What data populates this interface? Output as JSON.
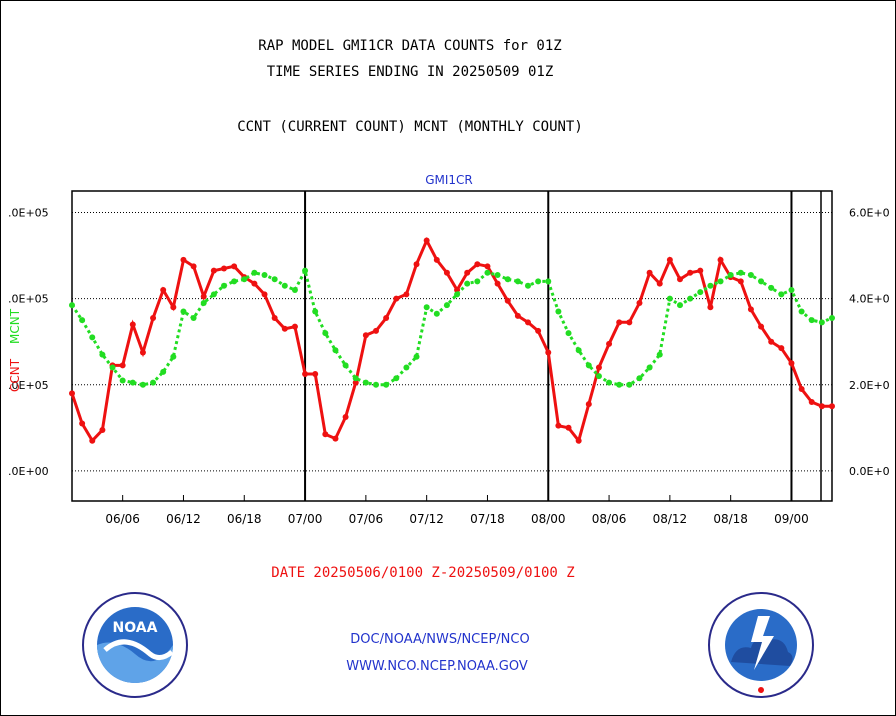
{
  "header": {
    "line1": "RAP MODEL GMI1CR DATA COUNTS for 01Z",
    "line2": "TIME SERIES ENDING IN 20250509 01Z",
    "line3": "CCNT (CURRENT COUNT) MCNT (MONTHLY COUNT)"
  },
  "footer": {
    "date_range": "DATE 20250506/0100 Z-20250509/0100 Z",
    "org": "DOC/NOAA/NWS/NCEP/NCO",
    "url": "WWW.NCO.NCEP.NOAA.GOV"
  },
  "logos": {
    "left": "NOAA",
    "right": "NATIONAL WEATHER SERVICE"
  },
  "colors": {
    "ccnt": "#ee1111",
    "mcnt": "#22dd22",
    "title_blue": "#2233cc",
    "grid": "#000000"
  },
  "chart_data": {
    "type": "line",
    "title": "GMI1CR",
    "ylabel_left_ccnt": "CCNT",
    "ylabel_left_mcnt": "MCNT",
    "xlim": [
      0,
      75
    ],
    "ylim": [
      -70000,
      650000
    ],
    "y_ticks_left": [
      {
        "value": 0,
        "label": ".0E+00"
      },
      {
        "value": 200000,
        "label": ".0E+05"
      },
      {
        "value": 400000,
        "label": ".0E+05"
      },
      {
        "value": 600000,
        "label": ".0E+05"
      }
    ],
    "y_ticks_right": [
      {
        "value": 0,
        "label": "0.0E+0"
      },
      {
        "value": 200000,
        "label": "2.0E+0"
      },
      {
        "value": 400000,
        "label": "4.0E+0"
      },
      {
        "value": 600000,
        "label": "6.0E+0"
      }
    ],
    "x_ticks": [
      {
        "x": 5,
        "label": "06/06"
      },
      {
        "x": 11,
        "label": "06/12"
      },
      {
        "x": 17,
        "label": "06/18"
      },
      {
        "x": 23,
        "label": "07/00"
      },
      {
        "x": 29,
        "label": "07/06"
      },
      {
        "x": 35,
        "label": "07/12"
      },
      {
        "x": 41,
        "label": "07/18"
      },
      {
        "x": 47,
        "label": "08/00"
      },
      {
        "x": 53,
        "label": "08/06"
      },
      {
        "x": 59,
        "label": "08/12"
      },
      {
        "x": 65,
        "label": "08/18"
      },
      {
        "x": 71,
        "label": "09/00"
      }
    ],
    "day_boundaries": [
      23,
      47,
      71
    ],
    "grid": true,
    "series": [
      {
        "name": "CCNT",
        "color": "#ee1111",
        "x": [
          0,
          1,
          2,
          3,
          4,
          5,
          6,
          7,
          8,
          9,
          10,
          11,
          12,
          13,
          14,
          15,
          16,
          17,
          18,
          19,
          20,
          21,
          22,
          23,
          24,
          25,
          26,
          27,
          28,
          29,
          30,
          31,
          32,
          33,
          34,
          35,
          36,
          37,
          38,
          39,
          40,
          41,
          42,
          43,
          44,
          45,
          46,
          47,
          48,
          49,
          50,
          51,
          52,
          53,
          54,
          55,
          56,
          57,
          58,
          59,
          60,
          61,
          62,
          63,
          64,
          65,
          66,
          67,
          68,
          69,
          70,
          71,
          72,
          73,
          74,
          75
        ],
        "y": [
          180000,
          110000,
          70000,
          95000,
          245000,
          245000,
          340000,
          275000,
          355000,
          420000,
          380000,
          490000,
          475000,
          405000,
          465000,
          470000,
          475000,
          450000,
          435000,
          410000,
          355000,
          330000,
          335000,
          225000,
          225000,
          85000,
          75000,
          125000,
          205000,
          315000,
          325000,
          355000,
          400000,
          410000,
          480000,
          535000,
          490000,
          460000,
          420000,
          460000,
          480000,
          475000,
          435000,
          395000,
          360000,
          345000,
          325000,
          275000,
          105000,
          100000,
          70000,
          155000,
          240000,
          295000,
          345000,
          345000,
          390000,
          460000,
          435000,
          490000,
          445000,
          460000,
          465000,
          380000,
          490000,
          450000,
          440000,
          375000,
          335000,
          300000,
          285000,
          250000,
          190000,
          160000,
          150000,
          150000
        ]
      },
      {
        "name": "MCNT",
        "color": "#22dd22",
        "x": [
          0,
          1,
          2,
          3,
          4,
          5,
          6,
          7,
          8,
          9,
          10,
          11,
          12,
          13,
          14,
          15,
          16,
          17,
          18,
          19,
          20,
          21,
          22,
          23,
          24,
          25,
          26,
          27,
          28,
          29,
          30,
          31,
          32,
          33,
          34,
          35,
          36,
          37,
          38,
          39,
          40,
          41,
          42,
          43,
          44,
          45,
          46,
          47,
          48,
          49,
          50,
          51,
          52,
          53,
          54,
          55,
          56,
          57,
          58,
          59,
          60,
          61,
          62,
          63,
          64,
          65,
          66,
          67,
          68,
          69,
          70,
          71,
          72,
          73,
          74,
          75
        ],
        "y": [
          385000,
          350000,
          310000,
          270000,
          240000,
          210000,
          205000,
          200000,
          205000,
          230000,
          265000,
          370000,
          355000,
          390000,
          410000,
          430000,
          440000,
          445000,
          460000,
          455000,
          445000,
          430000,
          420000,
          465000,
          370000,
          320000,
          280000,
          245000,
          215000,
          205000,
          200000,
          200000,
          215000,
          240000,
          265000,
          380000,
          365000,
          385000,
          410000,
          435000,
          440000,
          460000,
          455000,
          445000,
          440000,
          430000,
          440000,
          440000,
          370000,
          320000,
          280000,
          245000,
          220000,
          205000,
          200000,
          200000,
          215000,
          240000,
          270000,
          400000,
          385000,
          400000,
          415000,
          430000,
          440000,
          455000,
          460000,
          455000,
          440000,
          425000,
          410000,
          420000,
          370000,
          350000,
          345000,
          355000
        ]
      }
    ]
  }
}
